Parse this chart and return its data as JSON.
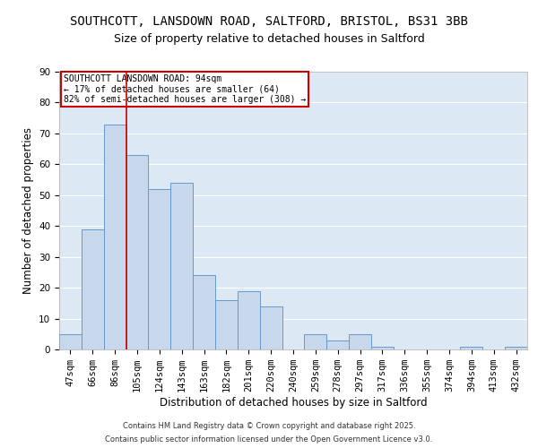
{
  "title": "SOUTHCOTT, LANSDOWN ROAD, SALTFORD, BRISTOL, BS31 3BB",
  "subtitle": "Size of property relative to detached houses in Saltford",
  "xlabel": "Distribution of detached houses by size in Saltford",
  "ylabel": "Number of detached properties",
  "bar_color": "#c8d8ec",
  "bar_edge_color": "#6699cc",
  "background_color": "#dce8f4",
  "grid_color": "#ffffff",
  "categories": [
    "47sqm",
    "66sqm",
    "86sqm",
    "105sqm",
    "124sqm",
    "143sqm",
    "163sqm",
    "182sqm",
    "201sqm",
    "220sqm",
    "240sqm",
    "259sqm",
    "278sqm",
    "297sqm",
    "317sqm",
    "336sqm",
    "355sqm",
    "374sqm",
    "394sqm",
    "413sqm",
    "432sqm"
  ],
  "values": [
    5,
    39,
    73,
    63,
    52,
    54,
    24,
    16,
    19,
    14,
    0,
    5,
    3,
    5,
    1,
    0,
    0,
    0,
    1,
    0,
    1
  ],
  "ylim": [
    0,
    90
  ],
  "yticks": [
    0,
    10,
    20,
    30,
    40,
    50,
    60,
    70,
    80,
    90
  ],
  "vline_x_index": 2,
  "vline_color": "#cc0000",
  "annotation_title": "SOUTHCOTT LANSDOWN ROAD: 94sqm",
  "annotation_line1": "← 17% of detached houses are smaller (64)",
  "annotation_line2": "82% of semi-detached houses are larger (308) →",
  "annotation_box_color": "#ffffff",
  "annotation_box_edge": "#cc0000",
  "footer1": "Contains HM Land Registry data © Crown copyright and database right 2025.",
  "footer2": "Contains public sector information licensed under the Open Government Licence v3.0.",
  "title_fontsize": 10,
  "subtitle_fontsize": 9,
  "axis_label_fontsize": 8.5,
  "tick_fontsize": 7.5,
  "annotation_fontsize": 7,
  "footer_fontsize": 6
}
